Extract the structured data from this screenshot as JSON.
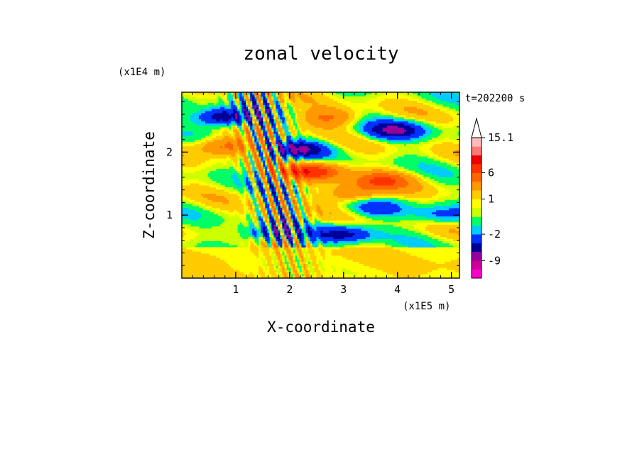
{
  "chart_data": {
    "type": "heatmap",
    "title": "zonal velocity",
    "xlabel": "X-coordinate",
    "ylabel": "Z-coordinate",
    "x_scale_label": "(x1E5 m)",
    "y_scale_label": "(x1E4 m)",
    "time_label": "t=202200 s",
    "xlim": [
      0,
      5.15
    ],
    "ylim": [
      0,
      2.95
    ],
    "x_ticks": [
      1,
      2,
      3,
      4,
      5
    ],
    "y_ticks": [
      1,
      2
    ],
    "x_minor_step": 0.2,
    "y_minor_step": 0.2,
    "colorbar": {
      "levels": [
        -15,
        -12,
        -9,
        -6,
        -4,
        -2,
        -1,
        0,
        0.5,
        1,
        2,
        4,
        6,
        8,
        11,
        13,
        15.1
      ],
      "colors": [
        "#ff00cc",
        "#cc0099",
        "#990099",
        "#000099",
        "#0033ff",
        "#00ccff",
        "#00ff66",
        "#ccff00",
        "#ffff00",
        "#ffcc00",
        "#ff9900",
        "#ff6600",
        "#ff3300",
        "#ee0000",
        "#ff7777",
        "#ffbbbb"
      ],
      "labeled_values": [
        "15.1",
        "6",
        "1",
        "-2",
        "-9"
      ]
    },
    "features": [
      {
        "x": 0.8,
        "z": 2.55,
        "u": -7
      },
      {
        "x": 2.15,
        "z": 2.05,
        "u": -6
      },
      {
        "x": 2.45,
        "z": 1.7,
        "u": 7
      },
      {
        "x": 0.8,
        "z": 2.1,
        "u": 5
      },
      {
        "x": 2.7,
        "z": 2.55,
        "u": 4
      },
      {
        "x": 3.2,
        "z": 1.35,
        "u": 4
      },
      {
        "x": 3.7,
        "z": 1.55,
        "u": 5
      },
      {
        "x": 3.0,
        "z": 0.7,
        "u": -5
      },
      {
        "x": 3.6,
        "z": 1.1,
        "u": -3
      },
      {
        "x": 3.95,
        "z": 2.35,
        "u": -6
      },
      {
        "x": 1.6,
        "z": 0.7,
        "u": -4
      },
      {
        "x": 4.8,
        "z": 1.0,
        "u": -3
      },
      {
        "x": 0.5,
        "z": 0.3,
        "u": 1.5
      }
    ]
  }
}
